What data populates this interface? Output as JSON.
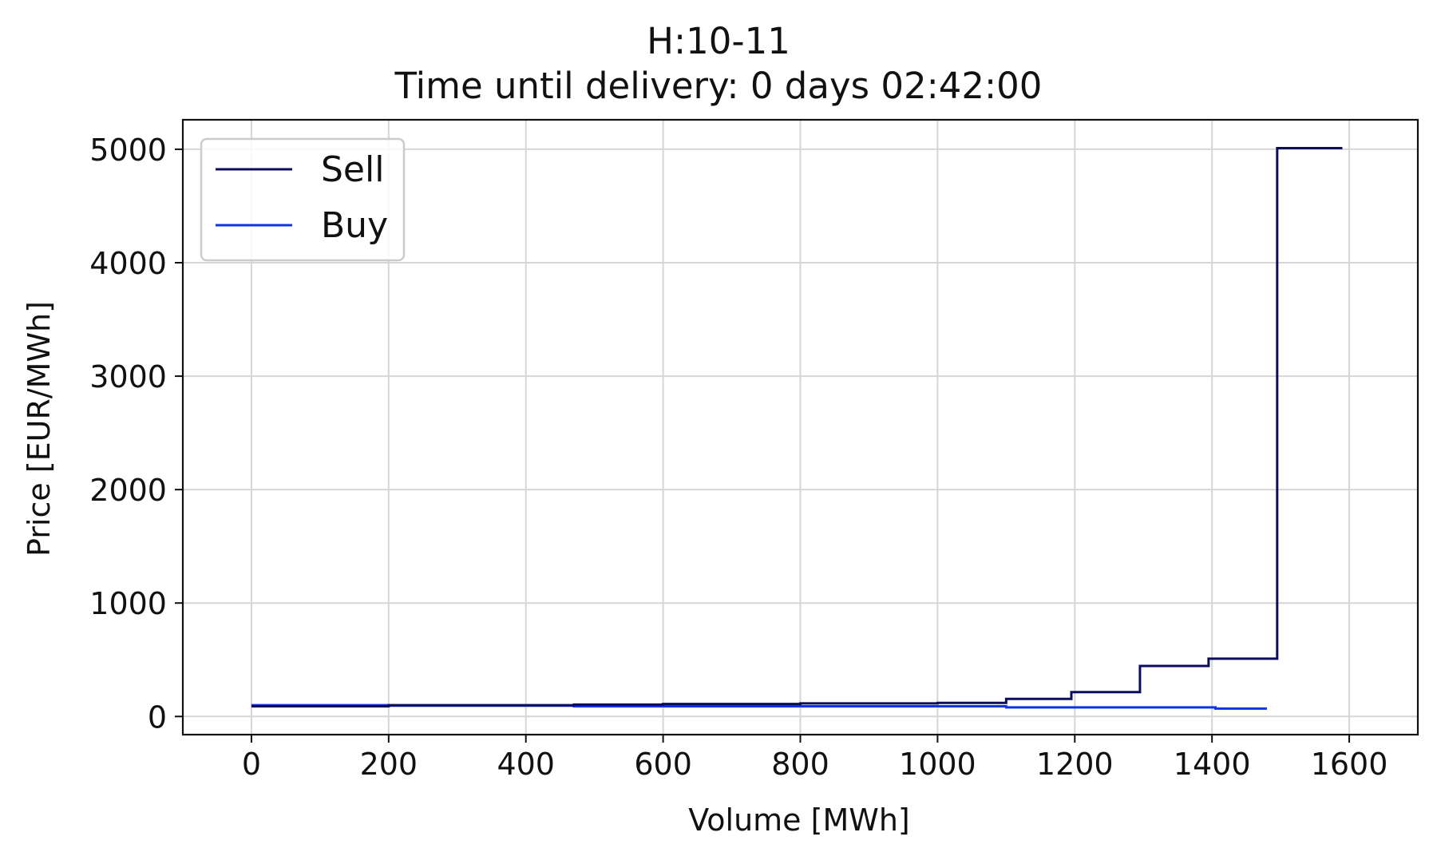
{
  "chart_data": {
    "type": "line",
    "title": "H:10-11",
    "subtitle": "Time until delivery: 0 days 02:42:00",
    "xlabel": "Volume [MWh]",
    "ylabel": "Price [EUR/MWh]",
    "xlim": [
      -100,
      1700
    ],
    "ylim": [
      -160,
      5260
    ],
    "xticks": [
      0,
      200,
      400,
      600,
      800,
      1000,
      1200,
      1400,
      1600
    ],
    "yticks": [
      0,
      1000,
      2000,
      3000,
      4000,
      5000
    ],
    "grid": true,
    "legend": "top-left",
    "series": [
      {
        "name": "Sell",
        "color": "#0d0d5e",
        "step": "post",
        "x": [
          0,
          200,
          470,
          600,
          800,
          1000,
          1100,
          1195,
          1295,
          1395,
          1495,
          1590
        ],
        "y": [
          90,
          100,
          105,
          110,
          115,
          120,
          155,
          215,
          445,
          510,
          5010,
          5010
        ]
      },
      {
        "name": "Buy",
        "color": "#1133e6",
        "step": "post",
        "x": [
          0,
          200,
          470,
          1100,
          1405,
          1480
        ],
        "y": [
          100,
          95,
          90,
          80,
          70,
          70
        ]
      }
    ]
  }
}
